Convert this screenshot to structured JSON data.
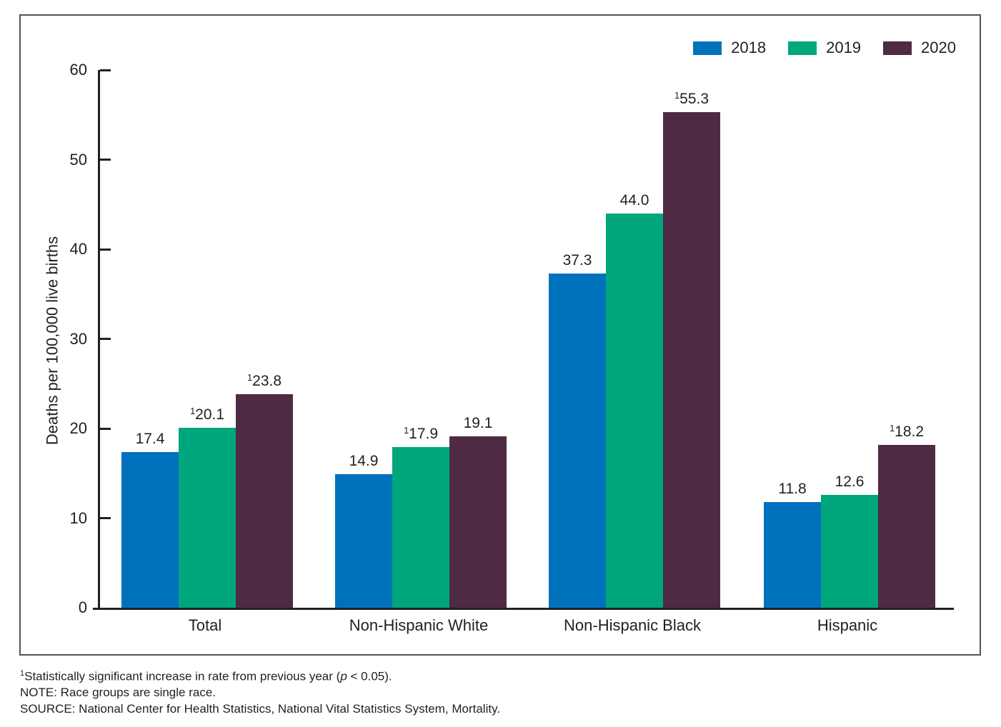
{
  "chart_data": {
    "type": "bar",
    "title": "",
    "xlabel": "",
    "ylabel": "Deaths per 100,000 live births",
    "ylim": [
      0,
      60
    ],
    "yticks": [
      0,
      10,
      20,
      30,
      40,
      50,
      60
    ],
    "grid": false,
    "legend_position": "top-right",
    "sig_marker": "1",
    "categories": [
      "Total",
      "Non-Hispanic White",
      "Non-Hispanic Black",
      "Hispanic"
    ],
    "series": [
      {
        "name": "2018",
        "color": "#0072bc",
        "values": [
          17.4,
          14.9,
          37.3,
          11.8
        ],
        "labels": [
          "17.4",
          "14.9",
          "37.3",
          "11.8"
        ],
        "significant": [
          false,
          false,
          false,
          false
        ]
      },
      {
        "name": "2019",
        "color": "#00a67c",
        "values": [
          20.1,
          17.9,
          44.0,
          12.6
        ],
        "labels": [
          "20.1",
          "17.9",
          "44.0",
          "12.6"
        ],
        "significant": [
          true,
          true,
          false,
          false
        ]
      },
      {
        "name": "2020",
        "color": "#4f2a44",
        "values": [
          23.8,
          19.1,
          55.3,
          18.2
        ],
        "labels": [
          "23.8",
          "19.1",
          "55.3",
          "18.2"
        ],
        "significant": [
          true,
          false,
          true,
          true
        ]
      }
    ]
  },
  "legend": {
    "items": [
      {
        "label": "2018",
        "color": "#0072bc"
      },
      {
        "label": "2019",
        "color": "#00a67c"
      },
      {
        "label": "2020",
        "color": "#4f2a44"
      }
    ]
  },
  "footnotes": {
    "sig_sup": "1",
    "sig_pre": "Statistically significant increase in rate from previous year (",
    "sig_italic": "p",
    "sig_post": " < 0.05).",
    "note": "NOTE: Race groups are single race.",
    "source": "SOURCE: National Center for Health Statistics, National Vital Statistics System, Mortality."
  }
}
